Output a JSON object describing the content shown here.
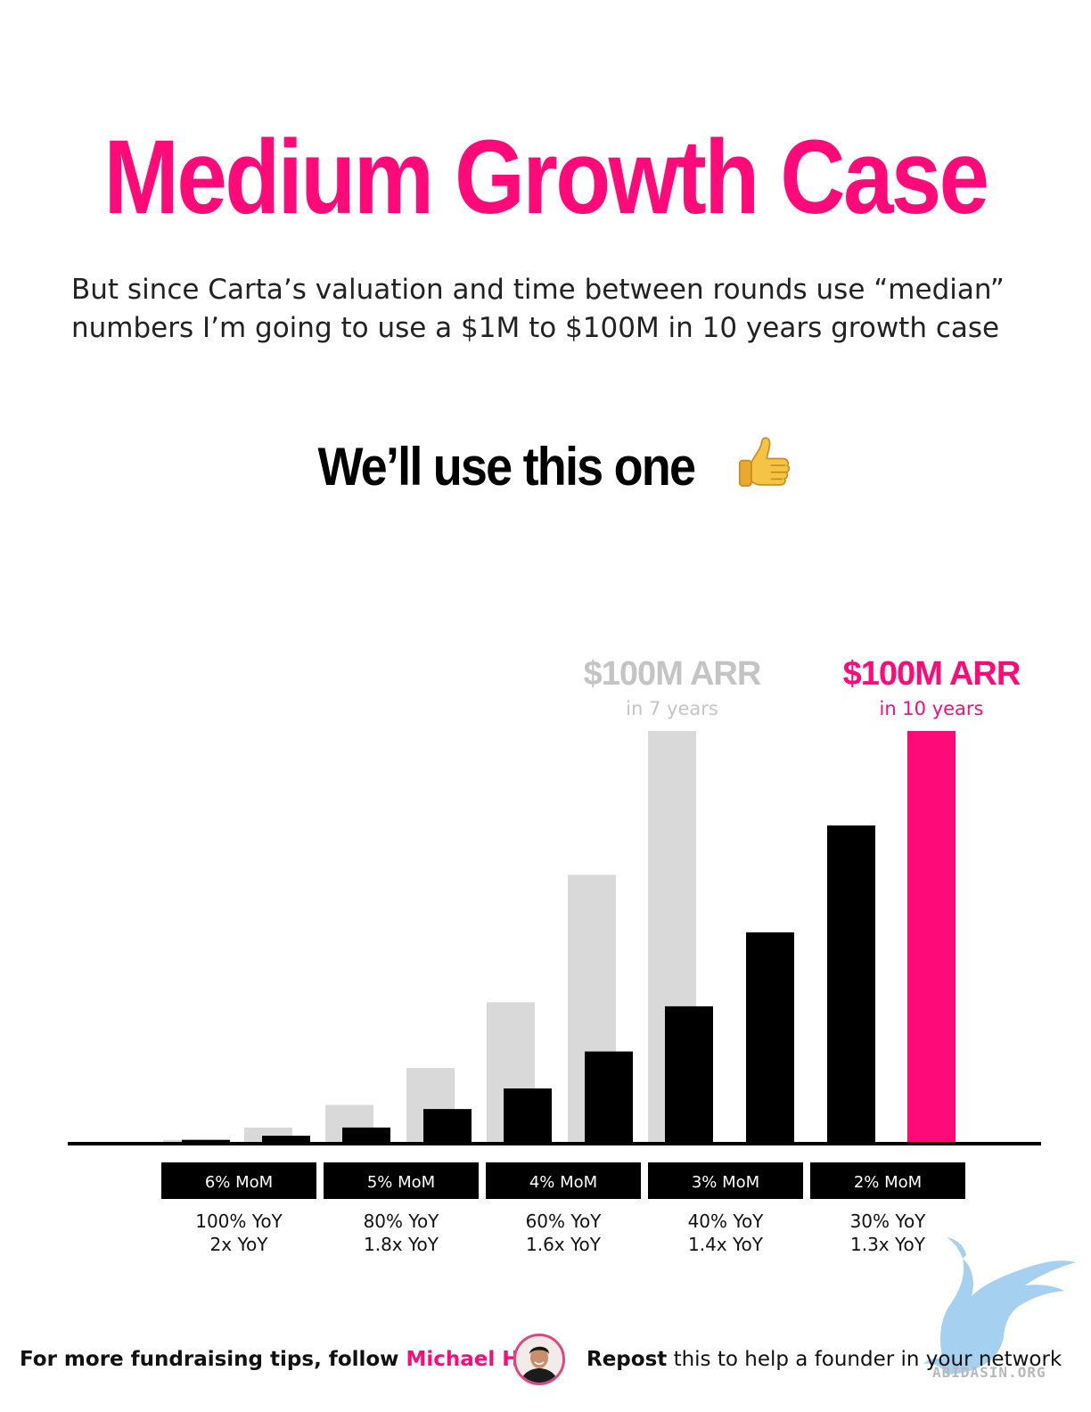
{
  "header": {
    "title": "Medium Growth Case",
    "subtitle_line1": "But since Carta’s valuation and time between rounds use “median”",
    "subtitle_line2": "numbers I’m going to use a $1M to $100M in 10 years growth case",
    "headline": "We’ll use this one",
    "headline_icon": "thumbs-up-icon"
  },
  "chart_data": {
    "type": "bar",
    "series": [
      {
        "color": "#d9d9d9",
        "values": [
          0.5,
          3.5,
          9,
          18,
          34,
          65,
          100
        ]
      },
      {
        "color": "#000000",
        "values": [
          0.5,
          1.5,
          3.5,
          8,
          13,
          22,
          33,
          51,
          77,
          100
        ]
      }
    ],
    "annotations": [
      {
        "label": "$100M ARR",
        "sublabel": "in 7 years",
        "color": "#c4c4c4"
      },
      {
        "label": "$100M ARR",
        "sublabel": "in 10 years",
        "color": "#ff0a78"
      }
    ],
    "growth_groups": [
      {
        "mom": "6% MoM",
        "yoy": "100% YoY",
        "multiple": "2x YoY"
      },
      {
        "mom": "5% MoM",
        "yoy": "80% YoY",
        "multiple": "1.8x YoY"
      },
      {
        "mom": "4% MoM",
        "yoy": "60% YoY",
        "multiple": "1.6x YoY"
      },
      {
        "mom": "3% MoM",
        "yoy": "40% YoY",
        "multiple": "1.4x YoY"
      },
      {
        "mom": "2% MoM",
        "yoy": "30% YoY",
        "multiple": "1.3x YoY"
      }
    ],
    "highlight_color": "#ff0a78",
    "ylim": [
      0,
      100
    ]
  },
  "footer": {
    "left_prefix": "For more fundraising tips, follow ",
    "left_name": "Michael Ho",
    "avatar_icon": "author-avatar",
    "right_bold": "Repost",
    "right_rest": " this to help a founder in your network",
    "watermark_text": "ABIDASIN.ORG"
  }
}
